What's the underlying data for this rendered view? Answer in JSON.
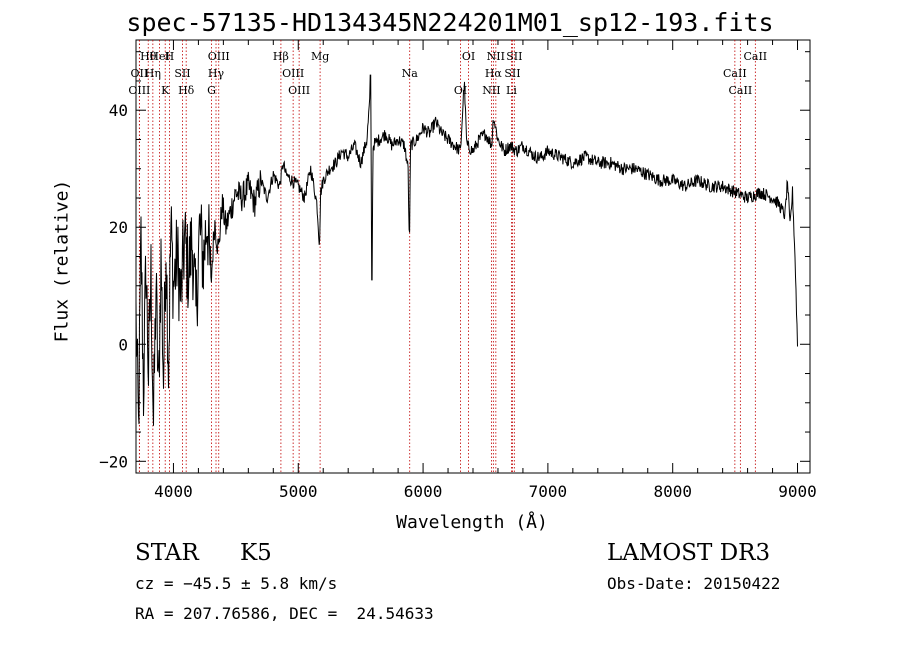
{
  "chart_data": {
    "type": "line",
    "title": "spec-57135-HD134345N224201M01_sp12-193.fits",
    "xlabel": "Wavelength (Å)",
    "ylabel": "Flux (relative)",
    "xlim": [
      3700,
      9100
    ],
    "ylim": [
      -22,
      52
    ],
    "x_ticks": [
      4000,
      5000,
      6000,
      7000,
      8000,
      9000
    ],
    "x_tick_labels": [
      "4000",
      "5000",
      "6000",
      "7000",
      "8000",
      "9000"
    ],
    "y_ticks": [
      -20,
      0,
      20,
      40
    ],
    "y_tick_labels": [
      "−20",
      "0",
      "20",
      "40"
    ],
    "series": [
      {
        "name": "flux",
        "x": [
          3700,
          3720,
          3740,
          3760,
          3780,
          3800,
          3820,
          3840,
          3860,
          3880,
          3900,
          3920,
          3940,
          3960,
          3980,
          4000,
          4030,
          4060,
          4090,
          4120,
          4150,
          4180,
          4210,
          4240,
          4270,
          4300,
          4330,
          4360,
          4390,
          4420,
          4460,
          4500,
          4550,
          4600,
          4650,
          4700,
          4750,
          4800,
          4850,
          4880,
          4900,
          4950,
          5000,
          5050,
          5100,
          5150,
          5170,
          5180,
          5200,
          5250,
          5300,
          5350,
          5400,
          5450,
          5500,
          5550,
          5580,
          5590,
          5600,
          5650,
          5700,
          5750,
          5800,
          5850,
          5880,
          5890,
          5900,
          5950,
          6000,
          6050,
          6100,
          6150,
          6200,
          6250,
          6300,
          6330,
          6350,
          6400,
          6450,
          6500,
          6550,
          6563,
          6600,
          6650,
          6700,
          6750,
          6800,
          6850,
          6900,
          6950,
          7000,
          7100,
          7200,
          7300,
          7400,
          7500,
          7600,
          7700,
          7800,
          7900,
          8000,
          8100,
          8200,
          8300,
          8400,
          8500,
          8600,
          8700,
          8800,
          8850,
          8900,
          8920,
          8940,
          8960,
          8980,
          9000
        ],
        "y": [
          5,
          -15,
          18,
          -8,
          14,
          -5,
          12,
          -14,
          10,
          -9,
          15,
          -6,
          18,
          -4,
          20,
          10,
          15,
          8,
          18,
          12,
          18,
          5,
          20,
          14,
          22,
          10,
          21,
          16,
          24,
          20,
          23,
          26,
          25,
          27,
          24,
          28,
          25,
          29,
          27,
          31,
          29,
          28,
          27,
          25,
          30,
          24,
          17,
          26,
          28,
          30,
          31,
          33,
          32,
          34,
          31,
          35,
          44,
          11,
          34,
          35,
          36,
          34,
          35,
          34,
          30,
          16,
          34,
          35,
          37,
          36,
          38,
          36,
          35,
          34,
          33,
          45,
          34,
          33,
          35,
          36,
          34,
          39,
          35,
          33,
          34,
          33,
          34,
          33,
          32,
          32,
          33,
          32,
          31,
          32,
          31,
          31,
          30,
          30,
          29,
          28,
          28,
          27,
          28,
          27,
          27,
          26,
          25,
          26,
          25,
          24,
          22,
          28,
          20,
          26,
          15,
          0
        ]
      }
    ],
    "lines": [
      {
        "label": "Hθ",
        "wavelength": 3798
      },
      {
        "label": "OII",
        "wavelength": 3727
      },
      {
        "label": "OIII",
        "wavelength": 3727
      },
      {
        "label": "HeI",
        "wavelength": 3889
      },
      {
        "label": "Hη",
        "wavelength": 3835
      },
      {
        "label": "K",
        "wavelength": 3934
      },
      {
        "label": "H",
        "wavelength": 3968
      },
      {
        "label": "SII",
        "wavelength": 4072
      },
      {
        "label": "Hδ",
        "wavelength": 4102
      },
      {
        "label": "OIII",
        "wavelength": 4363
      },
      {
        "label": "Hγ",
        "wavelength": 4341
      },
      {
        "label": "G",
        "wavelength": 4305
      },
      {
        "label": "Hβ",
        "wavelength": 4861
      },
      {
        "label": "OIII",
        "wavelength": 4959
      },
      {
        "label": "OIII",
        "wavelength": 5007
      },
      {
        "label": "Mg",
        "wavelength": 5175
      },
      {
        "label": "Na",
        "wavelength": 5893
      },
      {
        "label": "OI",
        "wavelength": 6300
      },
      {
        "label": "OI",
        "wavelength": 6364
      },
      {
        "label": "Hα",
        "wavelength": 6563
      },
      {
        "label": "NII",
        "wavelength": 6548
      },
      {
        "label": "NII",
        "wavelength": 6583
      },
      {
        "label": "SII",
        "wavelength": 6716
      },
      {
        "label": "Li",
        "wavelength": 6708
      },
      {
        "label": "SII",
        "wavelength": 6731
      },
      {
        "label": "CaII",
        "wavelength": 8498
      },
      {
        "label": "CaII",
        "wavelength": 8542
      },
      {
        "label": "CaII",
        "wavelength": 8662
      }
    ]
  },
  "info": {
    "object_class": "STAR",
    "subclass": "K5",
    "survey": "LAMOST DR3",
    "cz": "cz = −45.5 ± 5.8 km/s",
    "obs_date": "Obs-Date: 20150422",
    "coords": "RA = 207.76586, DEC =  24.54633"
  }
}
